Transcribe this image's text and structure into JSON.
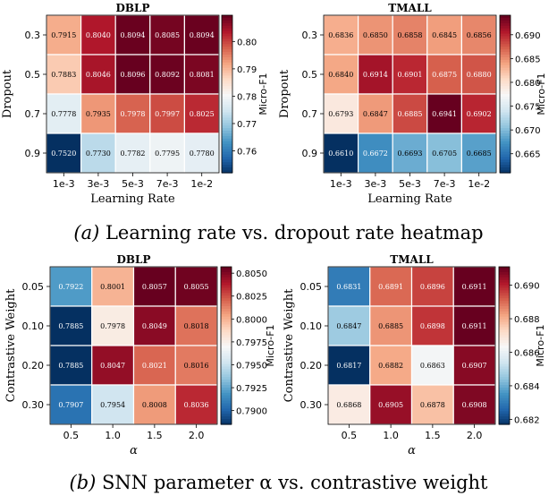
{
  "captions": {
    "a_label": "(a)",
    "a_text": "Learning rate vs. dropout rate heatmap",
    "b_label": "(b)",
    "b_text": "SNN parameter α vs. contrastive weight"
  },
  "colormap": {
    "name": "RdBu_r",
    "low": "#053061",
    "mid": "#f7f7f7",
    "high": "#67001f"
  },
  "chart_data": [
    {
      "type": "heatmap",
      "title": "DBLP",
      "xlabel": "Learning Rate",
      "ylabel": "Dropout",
      "x_ticks": [
        "1e-3",
        "3e-3",
        "5e-3",
        "7e-3",
        "1e-2"
      ],
      "y_ticks": [
        "0.3",
        "0.5",
        "0.7",
        "0.9"
      ],
      "values": [
        [
          0.7915,
          0.804,
          0.8094,
          0.8085,
          0.8094
        ],
        [
          0.7883,
          0.8046,
          0.8096,
          0.8092,
          0.8081
        ],
        [
          0.7778,
          0.7935,
          0.7978,
          0.7997,
          0.8025
        ],
        [
          0.752,
          0.773,
          0.7782,
          0.7795,
          0.778
        ]
      ],
      "colorbar_label": "Micro-F1",
      "colorbar_ticks": [
        "0.76",
        "0.77",
        "0.78",
        "0.79",
        "0.80"
      ],
      "vmin": 0.752,
      "vmax": 0.8096
    },
    {
      "type": "heatmap",
      "title": "TMALL",
      "xlabel": "Learning Rate",
      "ylabel": "Dropout",
      "x_ticks": [
        "1e-3",
        "3e-3",
        "5e-3",
        "7e-3",
        "1e-2"
      ],
      "y_ticks": [
        "0.3",
        "0.5",
        "0.7",
        "0.9"
      ],
      "values": [
        [
          0.6836,
          0.685,
          0.6858,
          0.6845,
          0.6856
        ],
        [
          0.684,
          0.6914,
          0.6901,
          0.6875,
          0.688
        ],
        [
          0.6793,
          0.6847,
          0.6885,
          0.6941,
          0.6902
        ],
        [
          0.661,
          0.6672,
          0.6693,
          0.6705,
          0.6685
        ]
      ],
      "colorbar_label": "Micro-F1",
      "colorbar_ticks": [
        "0.665",
        "0.670",
        "0.675",
        "0.680",
        "0.685",
        "0.690"
      ],
      "vmin": 0.661,
      "vmax": 0.6941
    },
    {
      "type": "heatmap",
      "title": "DBLP",
      "xlabel": "α",
      "ylabel": "Contrastive Weight",
      "x_ticks": [
        "0.5",
        "1.0",
        "1.5",
        "2.0"
      ],
      "y_ticks": [
        "0.05",
        "0.10",
        "0.20",
        "0.30"
      ],
      "values": [
        [
          0.7922,
          0.8001,
          0.8057,
          0.8055
        ],
        [
          0.7885,
          0.7978,
          0.8049,
          0.8018
        ],
        [
          0.7885,
          0.8047,
          0.8021,
          0.8016
        ],
        [
          0.7907,
          0.7954,
          0.8008,
          0.8036
        ]
      ],
      "colorbar_label": "Micro-F1",
      "colorbar_ticks": [
        "0.7900",
        "0.7925",
        "0.7950",
        "0.7975",
        "0.8000",
        "0.8025",
        "0.8050"
      ],
      "vmin": 0.7885,
      "vmax": 0.8057
    },
    {
      "type": "heatmap",
      "title": "TMALL",
      "xlabel": "α",
      "ylabel": "Contrastive Weight",
      "x_ticks": [
        "0.5",
        "1.0",
        "1.5",
        "2.0"
      ],
      "y_ticks": [
        "0.05",
        "0.10",
        "0.20",
        "0.30"
      ],
      "values": [
        [
          0.6831,
          0.6891,
          0.6896,
          0.6911
        ],
        [
          0.6847,
          0.6885,
          0.6898,
          0.6911
        ],
        [
          0.6817,
          0.6882,
          0.6863,
          0.6907
        ],
        [
          0.6868,
          0.6905,
          0.6878,
          0.6908
        ]
      ],
      "colorbar_label": "Micro-F1",
      "colorbar_ticks": [
        "0.682",
        "0.684",
        "0.686",
        "0.688",
        "0.690"
      ],
      "vmin": 0.6817,
      "vmax": 0.6911
    }
  ]
}
